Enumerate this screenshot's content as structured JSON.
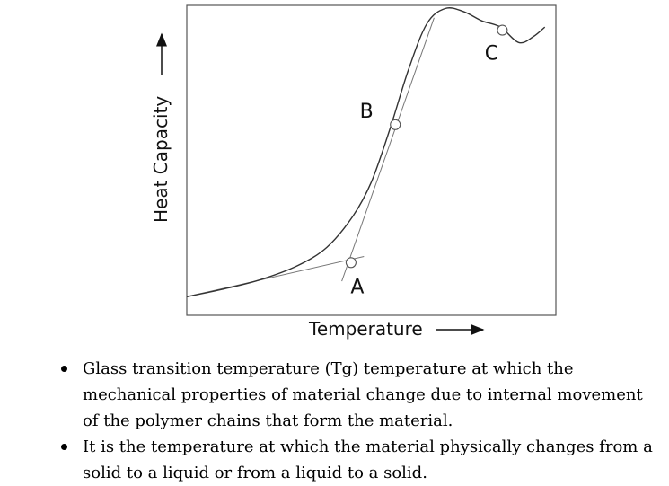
{
  "chart_data": {
    "type": "line",
    "title": "",
    "xlabel": "Temperature",
    "ylabel": "Heat Capacity",
    "grid": false,
    "legend": "none",
    "series": [
      {
        "values": [
          [
            0,
            0.06
          ],
          [
            0.1,
            0.085
          ],
          [
            0.2,
            0.115
          ],
          [
            0.3,
            0.16
          ],
          [
            0.38,
            0.22
          ],
          [
            0.45,
            0.32
          ],
          [
            0.5,
            0.43
          ],
          [
            0.55,
            0.6
          ],
          [
            0.6,
            0.79
          ],
          [
            0.65,
            0.94
          ],
          [
            0.7,
            0.99
          ],
          [
            0.75,
            0.98
          ],
          [
            0.8,
            0.95
          ],
          [
            0.85,
            0.93
          ],
          [
            0.9,
            0.88
          ],
          [
            0.94,
            0.9
          ],
          [
            0.97,
            0.93
          ]
        ]
      }
    ],
    "annotations": [
      {
        "label": "A",
        "x": 0.445,
        "y": 0.17
      },
      {
        "label": "B",
        "x": 0.565,
        "y": 0.615
      },
      {
        "label": "C",
        "x": 0.855,
        "y": 0.92
      }
    ],
    "tangents": [
      {
        "from": [
          0,
          0.06
        ],
        "to": [
          0.48,
          0.19
        ]
      },
      {
        "from": [
          0.42,
          0.11
        ],
        "to": [
          0.67,
          0.96
        ]
      }
    ]
  },
  "bullets": [
    "Glass transition temperature (Tg) temperature at which the mechanical properties of material change due to internal movement of the polymer chains that form the material.",
    "It is the temperature at which the material physically changes from a solid to a liquid or from a liquid to a solid."
  ]
}
